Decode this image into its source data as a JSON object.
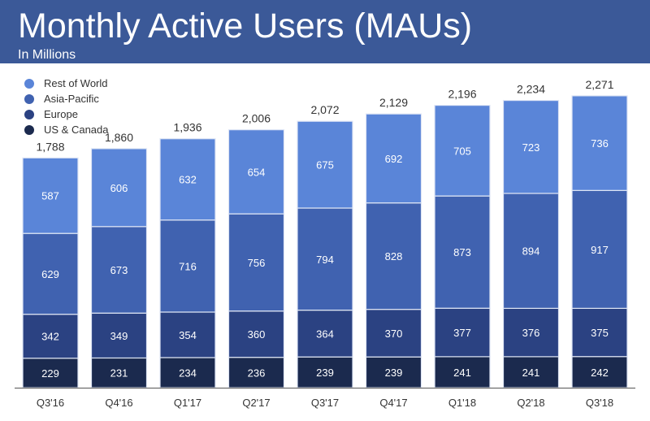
{
  "header": {
    "title": "Monthly Active Users (MAUs)",
    "subtitle": "In Millions"
  },
  "colors": {
    "header_bg": "#3b5998",
    "rest_of_world": "#5a85d8",
    "asia_pacific": "#4062b0",
    "europe": "#2b4282",
    "us_canada": "#1b2a4e"
  },
  "chart_data": {
    "type": "bar",
    "stacked": true,
    "title": "Monthly Active Users (MAUs)",
    "subtitle": "In Millions",
    "xlabel": "",
    "ylabel": "",
    "legend_position": "top-left",
    "grid": false,
    "categories": [
      "Q3'16",
      "Q4'16",
      "Q1'17",
      "Q2'17",
      "Q3'17",
      "Q4'17",
      "Q1'18",
      "Q2'18",
      "Q3'18"
    ],
    "totals": [
      "1,788",
      "1,860",
      "1,936",
      "2,006",
      "2,072",
      "2,129",
      "2,196",
      "2,234",
      "2,271"
    ],
    "series": [
      {
        "name": "US & Canada",
        "color": "#1b2a4e",
        "values": [
          229,
          231,
          234,
          236,
          239,
          239,
          241,
          241,
          242
        ]
      },
      {
        "name": "Europe",
        "color": "#2b4282",
        "values": [
          342,
          349,
          354,
          360,
          364,
          370,
          377,
          376,
          375
        ]
      },
      {
        "name": "Asia-Pacific",
        "color": "#4062b0",
        "values": [
          629,
          673,
          716,
          756,
          794,
          828,
          873,
          894,
          917
        ]
      },
      {
        "name": "Rest of World",
        "color": "#5a85d8",
        "values": [
          587,
          606,
          632,
          654,
          675,
          692,
          705,
          723,
          736
        ]
      }
    ]
  }
}
